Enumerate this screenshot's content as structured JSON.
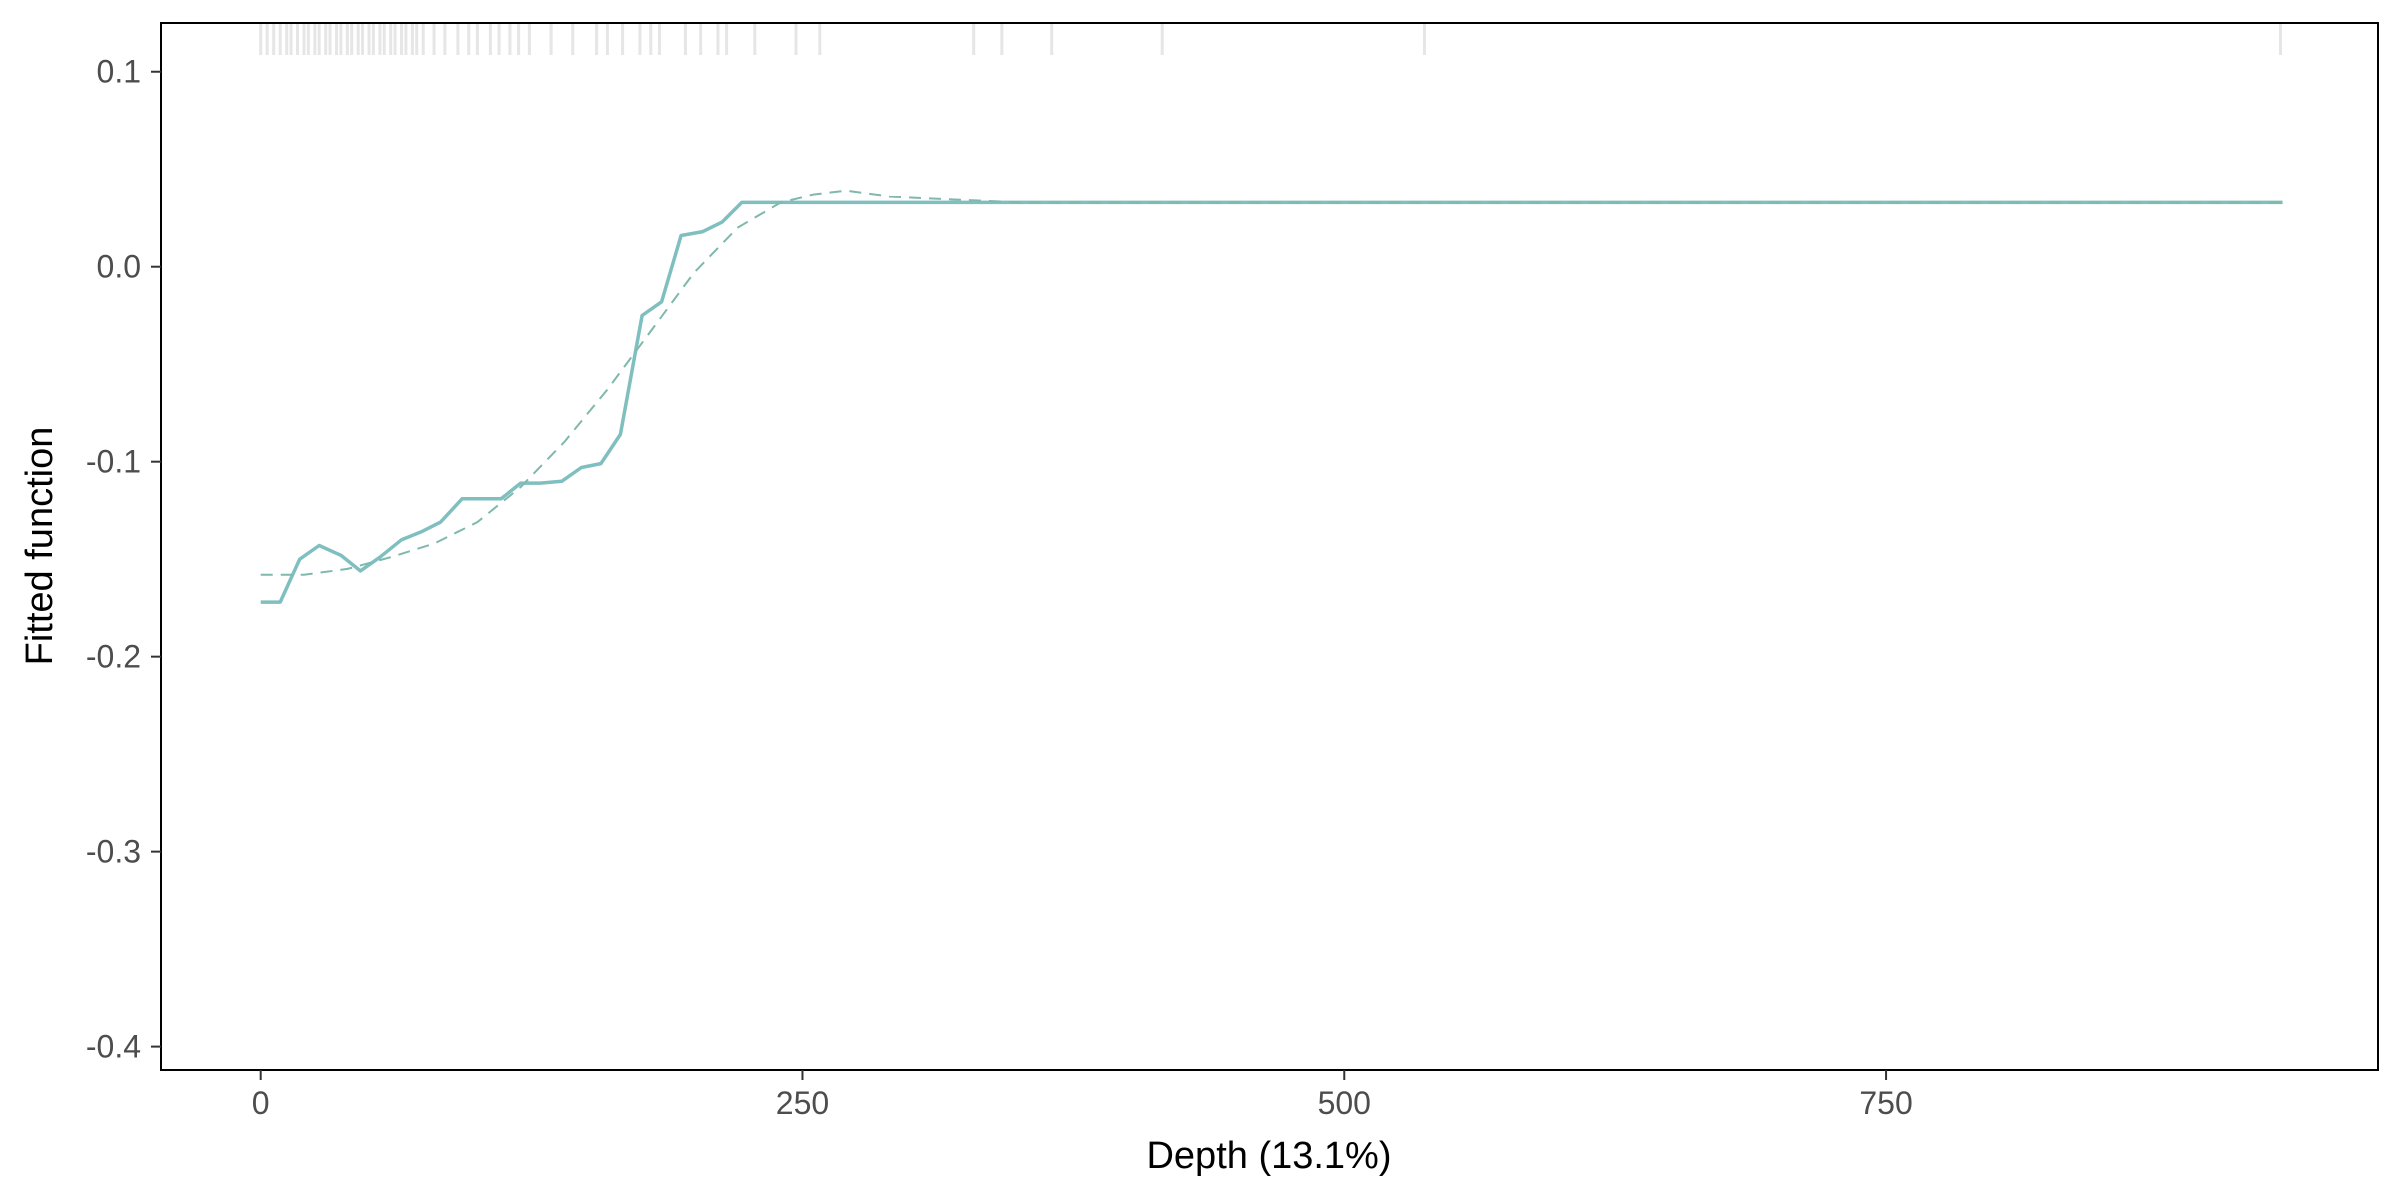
{
  "chart_data": {
    "type": "line",
    "xlabel": "Depth  (13.1%)",
    "ylabel": "Fitted function",
    "xlim": [
      -46,
      977
    ],
    "ylim": [
      -0.412,
      0.125
    ],
    "x_ticks": [
      0,
      250,
      500,
      750
    ],
    "x_tick_labels": [
      "0",
      "250",
      "500",
      "750"
    ],
    "y_ticks": [
      0.1,
      0.0,
      -0.1,
      -0.2,
      -0.3,
      -0.4
    ],
    "y_tick_labels": [
      "0.1",
      "0.0",
      "-0.1",
      "-0.2",
      "-0.3",
      "-0.4"
    ],
    "grid": false,
    "legend": "none",
    "colors": {
      "line": "#7fbfbf",
      "smooth": "#7fb8ac",
      "rug": "#e6e6e6",
      "frame": "#000000"
    },
    "series": [
      {
        "style": "solid",
        "x": [
          0,
          9,
          18,
          27,
          37,
          46,
          55,
          65,
          74,
          83,
          93,
          102,
          111,
          120,
          129,
          139,
          148,
          157,
          166,
          176,
          185,
          194,
          204,
          213,
          222,
          232,
          241,
          250,
          260,
          270,
          300,
          350,
          400,
          500,
          600,
          700,
          800,
          933
        ],
        "y": [
          -0.172,
          -0.172,
          -0.15,
          -0.143,
          -0.148,
          -0.156,
          -0.149,
          -0.14,
          -0.136,
          -0.131,
          -0.119,
          -0.119,
          -0.119,
          -0.111,
          -0.111,
          -0.11,
          -0.103,
          -0.101,
          -0.086,
          -0.025,
          -0.018,
          0.016,
          0.018,
          0.023,
          0.033,
          0.033,
          0.033,
          0.033,
          0.033,
          0.033,
          0.033,
          0.033,
          0.033,
          0.033,
          0.033,
          0.033,
          0.033,
          0.033
        ]
      },
      {
        "style": "dashed",
        "x": [
          0,
          20,
          40,
          60,
          80,
          100,
          120,
          140,
          160,
          180,
          200,
          220,
          240,
          255,
          270,
          290,
          310,
          330,
          350,
          400,
          500,
          600,
          700,
          800,
          933
        ],
        "y": [
          -0.158,
          -0.158,
          -0.155,
          -0.149,
          -0.142,
          -0.131,
          -0.113,
          -0.09,
          -0.063,
          -0.033,
          -0.003,
          0.02,
          0.033,
          0.037,
          0.039,
          0.036,
          0.035,
          0.034,
          0.033,
          0.033,
          0.033,
          0.033,
          0.033,
          0.033,
          0.033
        ]
      }
    ],
    "rug_x": [
      0,
      3,
      6,
      9,
      12,
      14,
      17,
      20,
      22,
      25,
      27,
      30,
      32,
      35,
      37,
      40,
      42,
      45,
      47,
      50,
      52,
      55,
      57,
      60,
      62,
      65,
      67,
      70,
      72,
      75,
      80,
      85,
      91,
      96,
      100,
      106,
      110,
      115,
      119,
      124,
      134,
      144,
      155,
      160,
      167,
      175,
      180,
      184,
      196,
      203,
      211,
      215,
      228,
      247,
      258,
      329,
      342,
      365,
      416,
      537,
      932
    ]
  }
}
